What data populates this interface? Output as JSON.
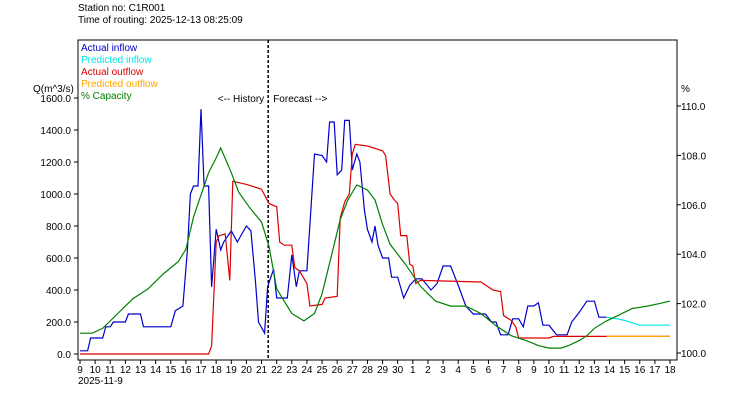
{
  "header": {
    "station": "Station no: C1R001",
    "routing_time": "Time of routing: 2025-12-13 08:25:09"
  },
  "chart_data": {
    "type": "line",
    "title": "",
    "ylabel_left": "Q(m^3/s)",
    "ylabel_right": "%",
    "ylim_left": [
      0,
      1600
    ],
    "ylim_right": [
      100,
      110
    ],
    "yticks_left": [
      "0.0",
      "200.0",
      "400.0",
      "600.0",
      "800.0",
      "1000.0",
      "1200.0",
      "1400.0",
      "1600.0"
    ],
    "yticks_right": [
      "100.0",
      "102.0",
      "104.0",
      "106.0",
      "108.0",
      "110.0"
    ],
    "x_tick_labels": [
      "9",
      "10",
      "11",
      "12",
      "13",
      "14",
      "15",
      "16",
      "17",
      "18",
      "19",
      "20",
      "21",
      "22",
      "23",
      "24",
      "25",
      "26",
      "27",
      "28",
      "29",
      "30",
      "1",
      "2",
      "3",
      "4",
      "5",
      "6",
      "7",
      "8",
      "9",
      "10",
      "11",
      "12",
      "13",
      "14",
      "15",
      "16",
      "17",
      "18"
    ],
    "x_date_label": "2025-11-9",
    "divider": {
      "x": 12.44,
      "history_label": "<-- History",
      "forecast_label": "Forecast -->"
    },
    "legend_position": "top-left",
    "series": [
      {
        "name": "Actual inflow",
        "color": "#0000cc",
        "axis": "left",
        "points": [
          [
            0,
            20
          ],
          [
            0.5,
            20
          ],
          [
            0.7,
            100
          ],
          [
            1.5,
            100
          ],
          [
            1.7,
            170
          ],
          [
            2,
            170
          ],
          [
            2.2,
            200
          ],
          [
            3,
            200
          ],
          [
            3.2,
            250
          ],
          [
            4,
            250
          ],
          [
            4.2,
            170
          ],
          [
            6,
            170
          ],
          [
            6.3,
            270
          ],
          [
            6.8,
            300
          ],
          [
            7.1,
            650
          ],
          [
            7.3,
            1000
          ],
          [
            7.5,
            1050
          ],
          [
            7.8,
            1050
          ],
          [
            8,
            1530
          ],
          [
            8.2,
            1050
          ],
          [
            8.5,
            1050
          ],
          [
            8.7,
            420
          ],
          [
            9,
            780
          ],
          [
            9.3,
            650
          ],
          [
            9.5,
            700
          ],
          [
            10,
            770
          ],
          [
            10.4,
            700
          ],
          [
            11,
            800
          ],
          [
            11.3,
            770
          ],
          [
            11.6,
            450
          ],
          [
            11.8,
            200
          ],
          [
            12.2,
            130
          ],
          [
            12.4,
            420
          ],
          [
            12.8,
            530
          ],
          [
            13,
            350
          ],
          [
            13.7,
            350
          ],
          [
            14,
            620
          ],
          [
            14.3,
            420
          ],
          [
            14.5,
            520
          ],
          [
            15,
            520
          ],
          [
            15.5,
            1250
          ],
          [
            16,
            1240
          ],
          [
            16.3,
            1200
          ],
          [
            16.5,
            1450
          ],
          [
            16.8,
            1450
          ],
          [
            17,
            1120
          ],
          [
            17.3,
            1150
          ],
          [
            17.5,
            1460
          ],
          [
            17.8,
            1460
          ],
          [
            18,
            1150
          ],
          [
            18.3,
            1250
          ],
          [
            18.5,
            1200
          ],
          [
            18.8,
            900
          ],
          [
            19,
            780
          ],
          [
            19.3,
            700
          ],
          [
            19.5,
            800
          ],
          [
            19.7,
            680
          ],
          [
            20,
            600
          ],
          [
            20.4,
            600
          ],
          [
            20.6,
            480
          ],
          [
            21,
            480
          ],
          [
            21.4,
            350
          ],
          [
            21.8,
            430
          ],
          [
            22.2,
            470
          ],
          [
            22.6,
            470
          ],
          [
            23.2,
            400
          ],
          [
            23.6,
            440
          ],
          [
            24,
            550
          ],
          [
            24.5,
            550
          ],
          [
            25,
            430
          ],
          [
            25.5,
            300
          ],
          [
            26,
            250
          ],
          [
            26.8,
            250
          ],
          [
            27.2,
            200
          ],
          [
            27.5,
            200
          ],
          [
            27.8,
            120
          ],
          [
            28.3,
            120
          ],
          [
            28.6,
            220
          ],
          [
            29,
            220
          ],
          [
            29.3,
            170
          ],
          [
            29.6,
            300
          ],
          [
            30,
            300
          ],
          [
            30.3,
            320
          ],
          [
            30.6,
            180
          ],
          [
            31,
            180
          ],
          [
            31.5,
            120
          ],
          [
            32.2,
            120
          ],
          [
            32.5,
            200
          ],
          [
            33,
            260
          ],
          [
            33.5,
            330
          ],
          [
            34,
            330
          ],
          [
            34.3,
            230
          ],
          [
            34.5,
            230
          ],
          [
            34.8,
            230
          ]
        ]
      },
      {
        "name": "Predicted inflow",
        "color": "#00e5e5",
        "axis": "left",
        "points": [
          [
            34.8,
            230
          ],
          [
            35.5,
            220
          ],
          [
            36,
            210
          ],
          [
            37,
            180
          ],
          [
            38,
            180
          ],
          [
            39,
            180
          ]
        ]
      },
      {
        "name": "Actual outflow",
        "color": "#dd0000",
        "axis": "left",
        "points": [
          [
            0,
            0
          ],
          [
            8.5,
            0
          ],
          [
            8.7,
            50
          ],
          [
            9,
            700
          ],
          [
            9.2,
            740
          ],
          [
            9.6,
            750
          ],
          [
            9.9,
            460
          ],
          [
            10.1,
            1080
          ],
          [
            11,
            1060
          ],
          [
            12,
            1030
          ],
          [
            12.5,
            940
          ],
          [
            13,
            920
          ],
          [
            13.2,
            700
          ],
          [
            13.5,
            680
          ],
          [
            14,
            680
          ],
          [
            14.2,
            540
          ],
          [
            14.5,
            520
          ],
          [
            15,
            440
          ],
          [
            15.2,
            300
          ],
          [
            16,
            310
          ],
          [
            16.2,
            350
          ],
          [
            17,
            360
          ],
          [
            17.2,
            850
          ],
          [
            17.5,
            950
          ],
          [
            17.8,
            1000
          ],
          [
            18,
            1250
          ],
          [
            18.2,
            1310
          ],
          [
            19,
            1300
          ],
          [
            20,
            1270
          ],
          [
            20.2,
            1240
          ],
          [
            20.5,
            1000
          ],
          [
            20.8,
            960
          ],
          [
            21,
            940
          ],
          [
            21.2,
            740
          ],
          [
            21.6,
            740
          ],
          [
            21.8,
            560
          ],
          [
            22,
            550
          ],
          [
            22.2,
            440
          ],
          [
            22.5,
            460
          ],
          [
            26.5,
            450
          ],
          [
            27.3,
            400
          ],
          [
            27.8,
            390
          ],
          [
            28,
            240
          ],
          [
            28.5,
            210
          ],
          [
            28.8,
            170
          ],
          [
            29,
            100
          ],
          [
            31,
            100
          ],
          [
            31.3,
            110
          ],
          [
            39,
            110
          ]
        ]
      },
      {
        "name": "Predicted outflow",
        "color": "#ffa500",
        "axis": "left",
        "points": [
          [
            34.8,
            110
          ],
          [
            39,
            110
          ]
        ]
      },
      {
        "name": "% Capacity",
        "color": "#008000",
        "axis": "right",
        "points": [
          [
            0,
            100.8
          ],
          [
            0.8,
            100.8
          ],
          [
            1.5,
            101.0
          ],
          [
            2.5,
            101.6
          ],
          [
            3.5,
            102.2
          ],
          [
            4.5,
            102.6
          ],
          [
            5.5,
            103.2
          ],
          [
            6.5,
            103.7
          ],
          [
            7,
            104.2
          ],
          [
            7.5,
            105.5
          ],
          [
            8.5,
            107.3
          ],
          [
            9,
            107.9
          ],
          [
            9.3,
            108.3
          ],
          [
            10,
            107.3
          ],
          [
            10.5,
            106.5
          ],
          [
            11.2,
            105.9
          ],
          [
            12,
            105.3
          ],
          [
            12.5,
            104.3
          ],
          [
            13,
            102.6
          ],
          [
            14,
            101.6
          ],
          [
            14.8,
            101.3
          ],
          [
            15.5,
            101.6
          ],
          [
            16,
            102.4
          ],
          [
            16.8,
            104.4
          ],
          [
            17.2,
            105.4
          ],
          [
            17.7,
            106.2
          ],
          [
            18.3,
            106.8
          ],
          [
            19,
            106.6
          ],
          [
            19.5,
            106.2
          ],
          [
            20,
            105.2
          ],
          [
            20.5,
            104.4
          ],
          [
            21.5,
            103.6
          ],
          [
            22.5,
            102.7
          ],
          [
            23.5,
            102.1
          ],
          [
            24.5,
            101.9
          ],
          [
            25.5,
            101.9
          ],
          [
            26.5,
            101.6
          ],
          [
            27.5,
            101.1
          ],
          [
            28.5,
            100.7
          ],
          [
            29.5,
            100.5
          ],
          [
            30.3,
            100.3
          ],
          [
            31,
            100.2
          ],
          [
            31.8,
            100.2
          ],
          [
            32.3,
            100.3
          ],
          [
            33,
            100.5
          ],
          [
            33.5,
            100.7
          ],
          [
            34,
            101.0
          ],
          [
            34.8,
            101.3
          ],
          [
            35.5,
            101.5
          ],
          [
            36.5,
            101.8
          ],
          [
            37.5,
            101.9
          ],
          [
            38.3,
            102.0
          ],
          [
            39,
            102.1
          ]
        ]
      }
    ]
  }
}
